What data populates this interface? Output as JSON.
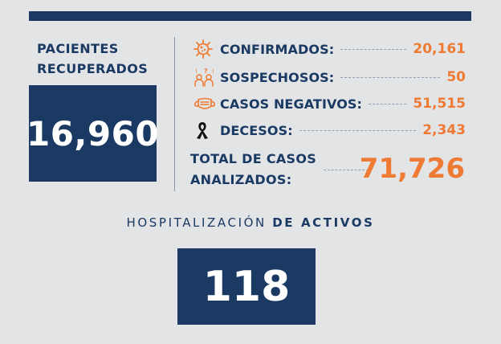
{
  "recovered": {
    "label_line1": "PACIENTES",
    "label_line2": "RECUPERADOS",
    "value": "16,960"
  },
  "stats": [
    {
      "label": "CONFIRMADOS:",
      "value": "20,161",
      "icon": "virus-icon"
    },
    {
      "label": "SOSPECHOSOS:",
      "value": "50",
      "icon": "suspects-icon"
    },
    {
      "label": "CASOS NEGATIVOS:",
      "value": "51,515",
      "icon": "face-mask-icon"
    },
    {
      "label": "DECESOS:",
      "value": "2,343",
      "icon": "mourning-ribbon-icon"
    }
  ],
  "total": {
    "label_line1": "TOTAL DE CASOS",
    "label_line2": "ANALIZADOS:",
    "value": "71,726"
  },
  "hospitalization": {
    "title_regular": "HOSPITALIZACIÓN",
    "title_bold": "DE ACTIVOS",
    "value": "118"
  },
  "colors": {
    "navy": "#1a3a64",
    "orange": "#ef7a33",
    "background": "#e3e4e6"
  }
}
